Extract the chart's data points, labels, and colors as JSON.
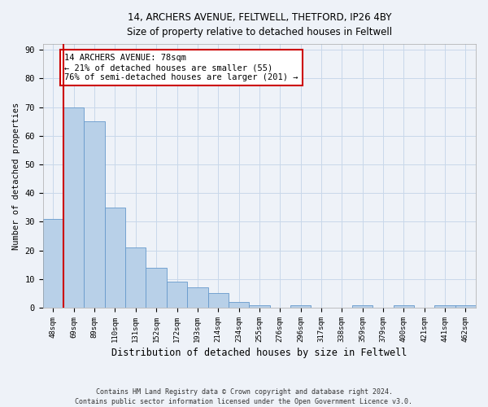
{
  "title1": "14, ARCHERS AVENUE, FELTWELL, THETFORD, IP26 4BY",
  "title2": "Size of property relative to detached houses in Feltwell",
  "xlabel": "Distribution of detached houses by size in Feltwell",
  "ylabel": "Number of detached properties",
  "categories": [
    "48sqm",
    "69sqm",
    "89sqm",
    "110sqm",
    "131sqm",
    "152sqm",
    "172sqm",
    "193sqm",
    "214sqm",
    "234sqm",
    "255sqm",
    "276sqm",
    "296sqm",
    "317sqm",
    "338sqm",
    "359sqm",
    "379sqm",
    "400sqm",
    "421sqm",
    "441sqm",
    "462sqm"
  ],
  "values": [
    31,
    70,
    65,
    35,
    21,
    14,
    9,
    7,
    5,
    2,
    1,
    0,
    1,
    0,
    0,
    1,
    0,
    1,
    0,
    1,
    1
  ],
  "bar_color": "#b8d0e8",
  "bar_edge_color": "#6699cc",
  "grid_color": "#c8d8ea",
  "background_color": "#eef2f8",
  "annotation_text": "14 ARCHERS AVENUE: 78sqm\n← 21% of detached houses are smaller (55)\n76% of semi-detached houses are larger (201) →",
  "annotation_box_color": "#ffffff",
  "annotation_box_edge": "#cc0000",
  "vline_color": "#cc0000",
  "ylim": [
    0,
    92
  ],
  "yticks": [
    0,
    10,
    20,
    30,
    40,
    50,
    60,
    70,
    80,
    90
  ],
  "footnote1": "Contains HM Land Registry data © Crown copyright and database right 2024.",
  "footnote2": "Contains public sector information licensed under the Open Government Licence v3.0."
}
